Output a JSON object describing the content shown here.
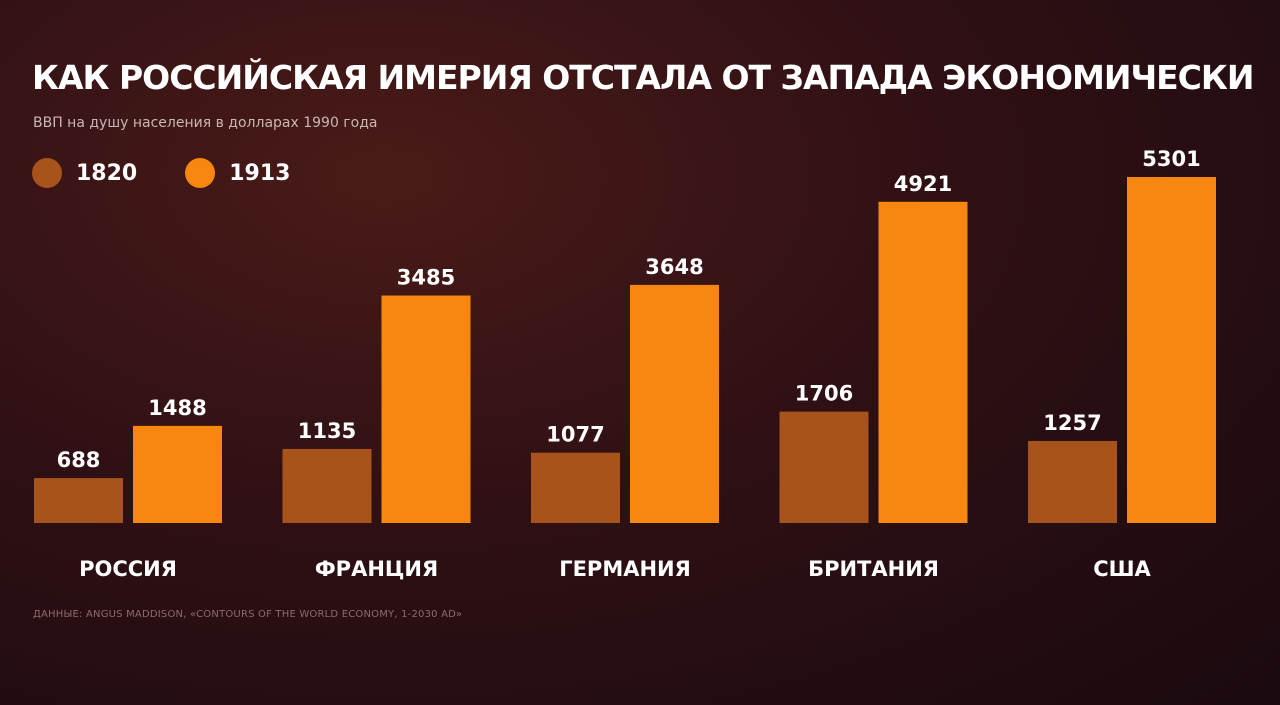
{
  "title": "КАК РОССИЙСКАЯ ИМЕРИЯ ОТСТАЛА ОТ ЗАПАДА ЭКОНОМИЧЕСКИ",
  "subtitle": "ВВП на душу населения в долларах 1990 года",
  "source": "ДАННЫЕ: ANGUS MADDISON, «CONTOURS OF THE WORLD ECONOMY, 1-2030 AD»",
  "colors": {
    "series_1820": "#a8531c",
    "series_1913": "#f7870f",
    "background": "#2a0e13"
  },
  "chart_data": {
    "type": "bar",
    "title": "КАК РОССИЙСКАЯ ИМЕРИЯ ОТСТАЛА ОТ ЗАПАДА ЭКОНОМИЧЕСКИ",
    "subtitle": "ВВП на душу населения в долларах 1990 года",
    "categories": [
      "РОССИЯ",
      "ФРАНЦИЯ",
      "ГЕРМАНИЯ",
      "БРИТАНИЯ",
      "США"
    ],
    "series": [
      {
        "name": "1820",
        "values": [
          688,
          1135,
          1077,
          1706,
          1257
        ]
      },
      {
        "name": "1913",
        "values": [
          1488,
          3485,
          3648,
          4921,
          5301
        ]
      }
    ],
    "xlabel": "",
    "ylabel": "",
    "ylim": [
      0,
      5301
    ],
    "grid": false,
    "legend": "top-left",
    "data_labels": true
  }
}
